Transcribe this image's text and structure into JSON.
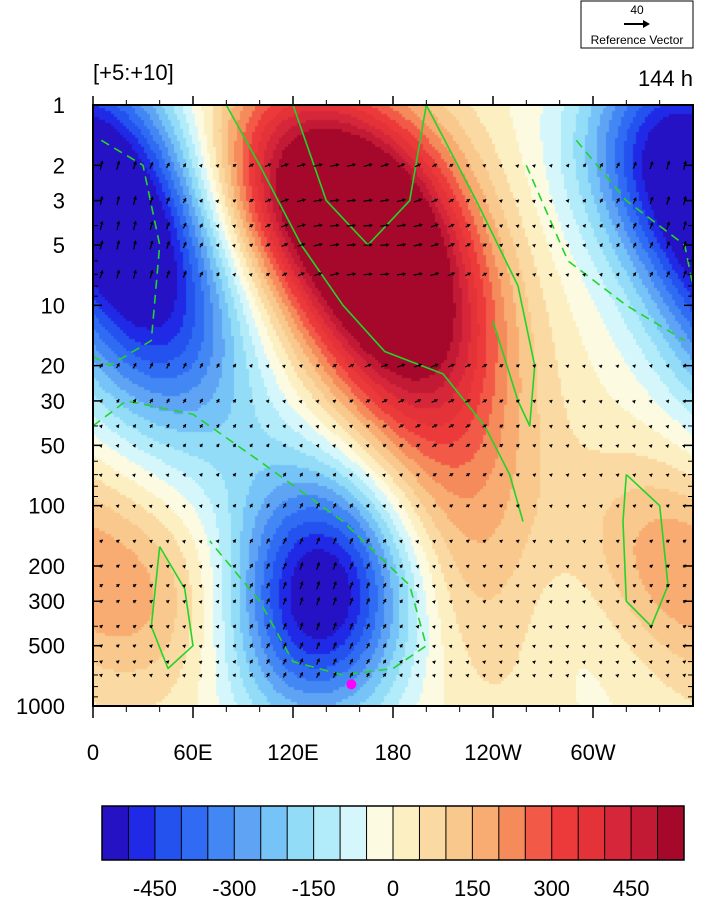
{
  "chart_data": {
    "type": "heatmap",
    "title_left": "[+5:+10]",
    "title_right": "144 h",
    "reference_vector": {
      "magnitude": "40",
      "label": "Reference Vector"
    },
    "x_axis": {
      "range_deg": [
        0,
        360
      ],
      "ticks": [
        {
          "deg": 0,
          "label": "0"
        },
        {
          "deg": 60,
          "label": "60E"
        },
        {
          "deg": 120,
          "label": "120E"
        },
        {
          "deg": 180,
          "label": "180"
        },
        {
          "deg": 240,
          "label": "120W"
        },
        {
          "deg": 300,
          "label": "60W"
        }
      ]
    },
    "y_axis": {
      "scale": "log",
      "inverted": true,
      "range": [
        1,
        1000
      ],
      "ticks": [
        1,
        2,
        3,
        5,
        10,
        20,
        30,
        50,
        100,
        200,
        300,
        500,
        1000
      ],
      "tick_labels": [
        "1",
        "2",
        "3",
        "5",
        "10",
        "20",
        "30",
        "50",
        "100",
        "200",
        "300",
        "500",
        "1000"
      ]
    },
    "colorbar": {
      "levels": [
        -550,
        -500,
        -450,
        -400,
        -350,
        -300,
        -250,
        -200,
        -150,
        -100,
        -50,
        0,
        50,
        100,
        150,
        200,
        250,
        300,
        350,
        400,
        450,
        500,
        550
      ],
      "colors": [
        "#2412c4",
        "#1f29e6",
        "#2352ef",
        "#2f6cf3",
        "#4387f4",
        "#5fa3f5",
        "#76c4f7",
        "#92dcf8",
        "#b2ebf9",
        "#d5f7fb",
        "#fcfbe2",
        "#fcefc2",
        "#fbd9a2",
        "#f9c88c",
        "#f8ac71",
        "#f58a5b",
        "#f25a47",
        "#ec3a3a",
        "#e43239",
        "#d6263a",
        "#c21a35",
        "#a5082b"
      ],
      "labels": [
        {
          "value": -450,
          "text": "-450"
        },
        {
          "value": -300,
          "text": "-300"
        },
        {
          "value": -150,
          "text": "-150"
        },
        {
          "value": 0,
          "text": "0"
        },
        {
          "value": 150,
          "text": "150"
        },
        {
          "value": 300,
          "text": "300"
        },
        {
          "value": 450,
          "text": "450"
        }
      ]
    },
    "field_anomalies": [
      {
        "lon": 165,
        "p": 4,
        "value": 560
      },
      {
        "lon": 120,
        "p": 2,
        "value": 380
      },
      {
        "lon": 190,
        "p": 12,
        "value": 420
      },
      {
        "lon": 210,
        "p": 40,
        "value": 180
      },
      {
        "lon": 225,
        "p": 160,
        "value": 120
      },
      {
        "lon": 345,
        "p": 1.5,
        "value": -420
      },
      {
        "lon": 20,
        "p": 4,
        "value": -420
      },
      {
        "lon": 40,
        "p": 12,
        "value": -300
      },
      {
        "lon": 60,
        "p": 30,
        "value": -80
      },
      {
        "lon": 140,
        "p": 300,
        "value": -320
      },
      {
        "lon": 140,
        "p": 150,
        "value": -200
      },
      {
        "lon": 125,
        "p": 550,
        "value": -150
      },
      {
        "lon": 290,
        "p": 350,
        "value": -160
      },
      {
        "lon": 40,
        "p": 300,
        "value": 140
      },
      {
        "lon": 330,
        "p": 200,
        "value": 200
      },
      {
        "lon": 90,
        "p": 60,
        "value": -50
      },
      {
        "lon": 260,
        "p": 500,
        "value": 100
      }
    ],
    "contours_positive": [
      [
        [
          80,
          1
        ],
        [
          100,
          2
        ],
        [
          125,
          5
        ],
        [
          150,
          10
        ],
        [
          175,
          17
        ],
        [
          210,
          22
        ],
        [
          235,
          40
        ],
        [
          250,
          70
        ],
        [
          258,
          120
        ]
      ],
      [
        [
          120,
          1
        ],
        [
          140,
          3
        ],
        [
          165,
          5
        ],
        [
          190,
          3
        ],
        [
          200,
          1
        ]
      ],
      [
        [
          200,
          1
        ],
        [
          230,
          3
        ],
        [
          255,
          8
        ],
        [
          265,
          20
        ],
        [
          262,
          40
        ],
        [
          255,
          30
        ],
        [
          240,
          12
        ]
      ],
      [
        [
          40,
          160
        ],
        [
          55,
          260
        ],
        [
          60,
          500
        ],
        [
          45,
          650
        ],
        [
          35,
          400
        ],
        [
          40,
          160
        ]
      ],
      [
        [
          320,
          70
        ],
        [
          340,
          100
        ],
        [
          345,
          250
        ],
        [
          335,
          400
        ],
        [
          320,
          300
        ],
        [
          318,
          120
        ],
        [
          320,
          70
        ]
      ]
    ],
    "contours_negative": [
      [
        [
          5,
          1.5
        ],
        [
          30,
          2
        ],
        [
          40,
          5
        ],
        [
          35,
          15
        ],
        [
          10,
          20
        ],
        [
          0,
          18
        ]
      ],
      [
        [
          0,
          40
        ],
        [
          20,
          30
        ],
        [
          60,
          35
        ],
        [
          100,
          60
        ],
        [
          150,
          120
        ],
        [
          190,
          250
        ],
        [
          200,
          500
        ],
        [
          180,
          650
        ],
        [
          150,
          700
        ],
        [
          120,
          600
        ],
        [
          100,
          300
        ],
        [
          70,
          150
        ]
      ],
      [
        [
          290,
          1.5
        ],
        [
          320,
          3
        ],
        [
          355,
          5
        ],
        [
          360,
          8
        ]
      ],
      [
        [
          260,
          2
        ],
        [
          285,
          6
        ],
        [
          320,
          10
        ],
        [
          355,
          15
        ]
      ]
    ],
    "wind_vectors_region": {
      "lon_range": [
        0,
        360
      ],
      "p_levels": [
        2,
        3,
        4,
        5,
        7,
        20,
        30,
        40,
        50,
        70,
        100,
        150,
        200,
        250,
        300,
        400,
        500,
        600,
        700
      ]
    },
    "marker": {
      "lon": 155,
      "p": 780,
      "color": "#ff00ff"
    }
  }
}
